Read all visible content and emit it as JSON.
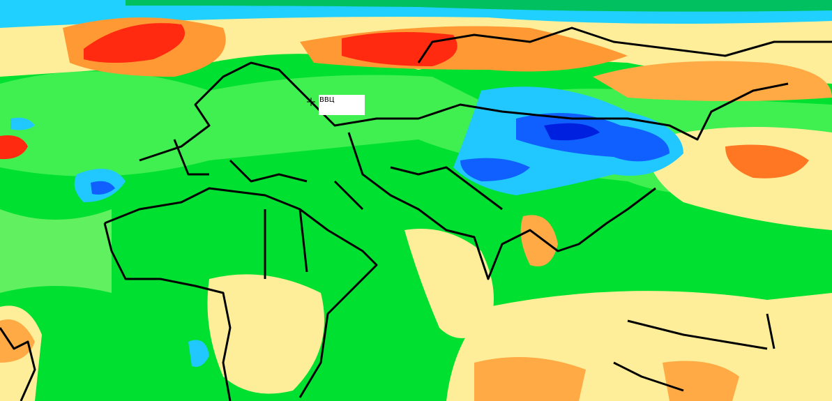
{
  "label": {
    "text": "ВВЦ"
  }
}
